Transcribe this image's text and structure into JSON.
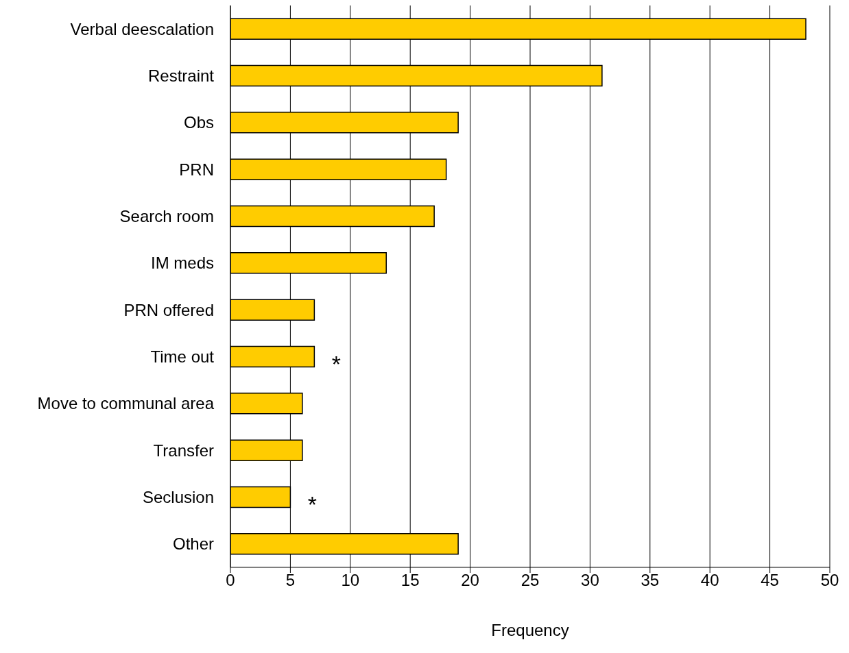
{
  "chart_data": {
    "type": "bar",
    "orientation": "horizontal",
    "xlabel": "Frequency",
    "categories": [
      "Verbal deescalation",
      "Restraint",
      "Obs",
      "PRN",
      "Search room",
      "IM meds",
      "PRN offered",
      "Time out",
      "Move to communal area",
      "Transfer",
      "Seclusion",
      "Other"
    ],
    "values": [
      48,
      31,
      19,
      18,
      17,
      13,
      7,
      7,
      6,
      6,
      5,
      19
    ],
    "color": "#ffcc00",
    "xlim": [
      0,
      50
    ],
    "xticks": [
      0,
      5,
      10,
      15,
      20,
      25,
      30,
      35,
      40,
      45,
      50
    ],
    "grid": "x",
    "annotations": [
      {
        "text": "*",
        "x": 7,
        "y": "Time out"
      },
      {
        "text": "*",
        "x": 5,
        "y": "Seclusion"
      }
    ]
  }
}
